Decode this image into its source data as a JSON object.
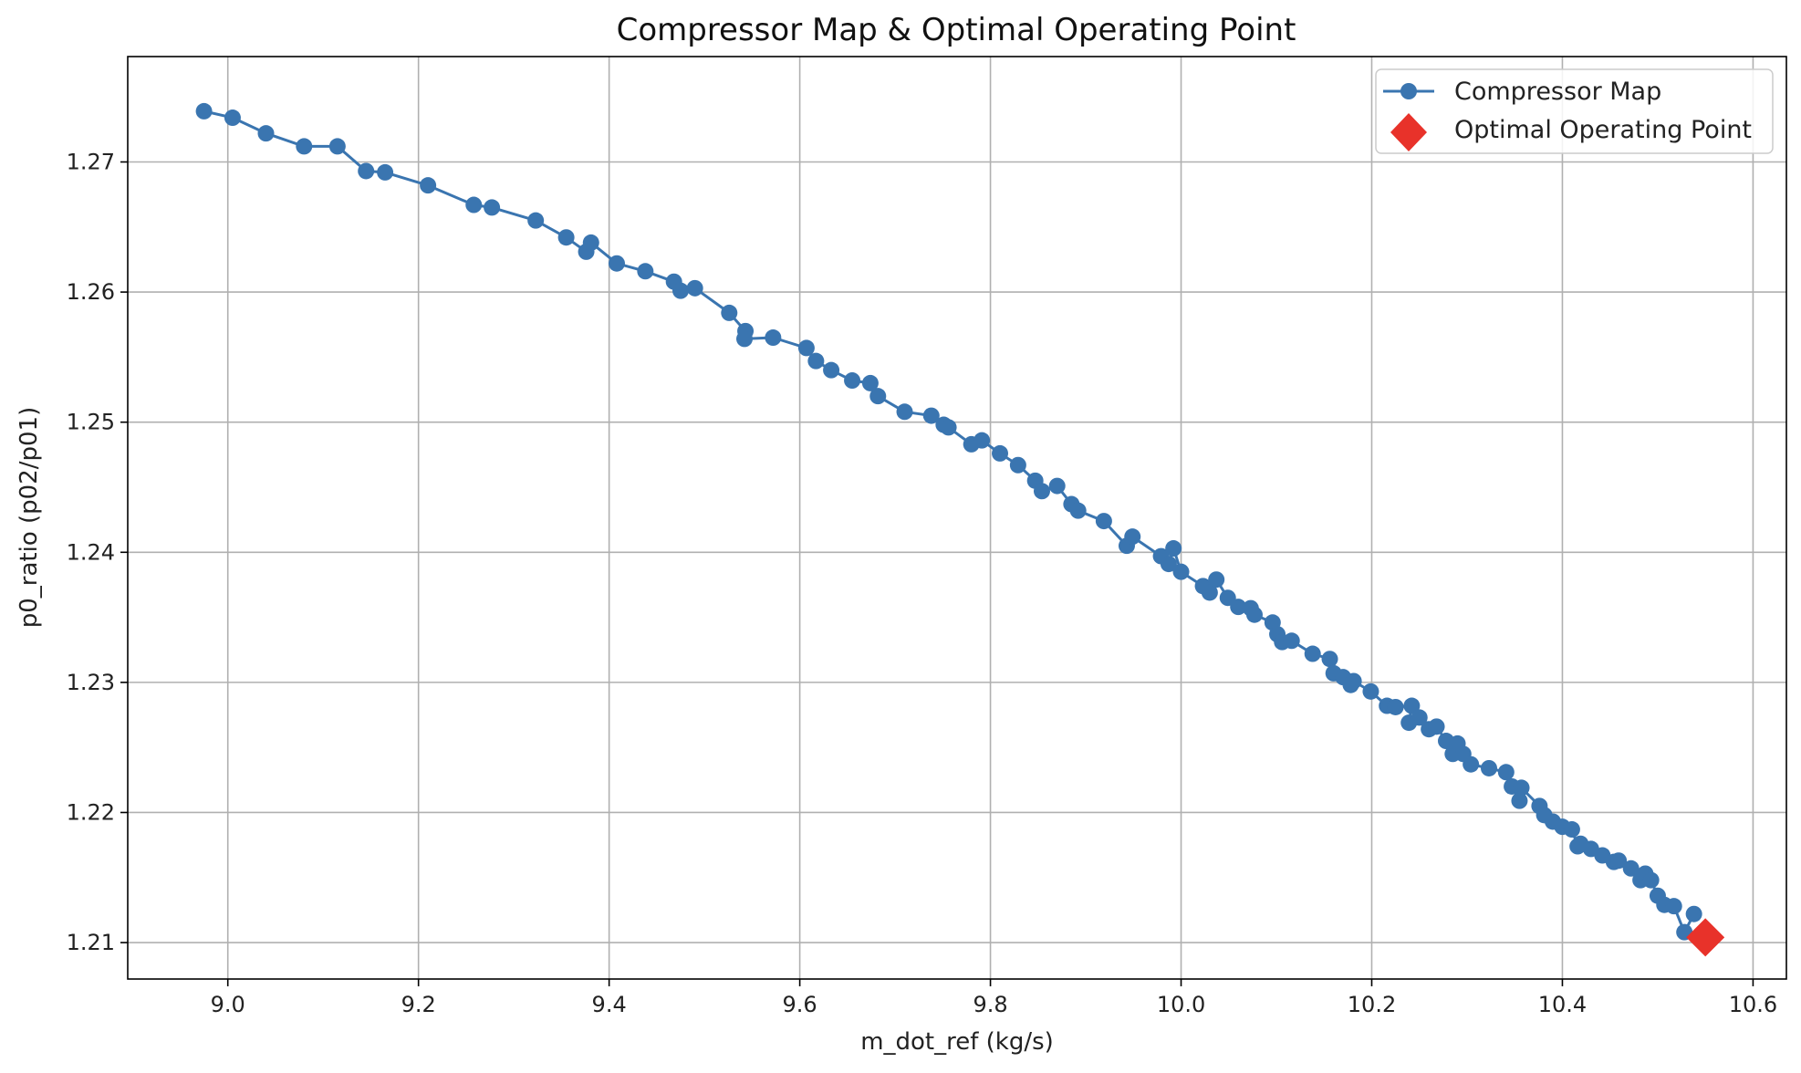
{
  "chart_data": {
    "type": "line",
    "title": "Compressor Map & Optimal Operating Point",
    "xlabel": "m_dot_ref (kg/s)",
    "ylabel": "p0_ratio (p02/p01)",
    "xlim": [
      8.895,
      10.635
    ],
    "ylim": [
      1.2072,
      1.2781
    ],
    "xticks": [
      9.0,
      9.2,
      9.4,
      9.6,
      9.8,
      10.0,
      10.2,
      10.4,
      10.6
    ],
    "xtick_labels": [
      "9.0",
      "9.2",
      "9.4",
      "9.6",
      "9.8",
      "10.0",
      "10.2",
      "10.4",
      "10.6"
    ],
    "yticks": [
      1.21,
      1.22,
      1.23,
      1.24,
      1.25,
      1.26,
      1.27
    ],
    "ytick_labels": [
      "1.21",
      "1.22",
      "1.23",
      "1.24",
      "1.25",
      "1.26",
      "1.27"
    ],
    "grid": true,
    "legend_position": "top-right",
    "series": [
      {
        "name": "Compressor Map",
        "color": "#3a75b0",
        "marker": "circle",
        "x": [
          8.975,
          9.005,
          9.04,
          9.08,
          9.115,
          9.145,
          9.165,
          9.21,
          9.258,
          9.277,
          9.323,
          9.355,
          9.376,
          9.381,
          9.408,
          9.438,
          9.468,
          9.475,
          9.49,
          9.526,
          9.543,
          9.542,
          9.572,
          9.607,
          9.617,
          9.633,
          9.655,
          9.674,
          9.682,
          9.71,
          9.738,
          9.751,
          9.756,
          9.78,
          9.791,
          9.81,
          9.829,
          9.847,
          9.854,
          9.87,
          9.885,
          9.892,
          9.919,
          9.943,
          9.949,
          9.979,
          9.987,
          9.992,
          10.0,
          10.023,
          10.03,
          10.037,
          10.049,
          10.06,
          10.073,
          10.077,
          10.096,
          10.101,
          10.106,
          10.116,
          10.138,
          10.156,
          10.16,
          10.17,
          10.178,
          10.181,
          10.199,
          10.216,
          10.225,
          10.242,
          10.239,
          10.25,
          10.26,
          10.268,
          10.278,
          10.285,
          10.29,
          10.296,
          10.304,
          10.323,
          10.341,
          10.347,
          10.355,
          10.357,
          10.376,
          10.381,
          10.39,
          10.4,
          10.41,
          10.416,
          10.419,
          10.43,
          10.442,
          10.454,
          10.459,
          10.472,
          10.482,
          10.487,
          10.493,
          10.5,
          10.507,
          10.517,
          10.528,
          10.538
        ],
        "y": [
          1.2739,
          1.2734,
          1.2722,
          1.2712,
          1.2712,
          1.2693,
          1.2692,
          1.2682,
          1.2667,
          1.2665,
          1.2655,
          1.2642,
          1.2631,
          1.2638,
          1.2622,
          1.2616,
          1.2608,
          1.2601,
          1.2603,
          1.2584,
          1.257,
          1.2564,
          1.2565,
          1.2557,
          1.2547,
          1.254,
          1.2532,
          1.253,
          1.252,
          1.2508,
          1.2505,
          1.2498,
          1.2496,
          1.2483,
          1.2486,
          1.2476,
          1.2467,
          1.2455,
          1.2447,
          1.2451,
          1.2437,
          1.2432,
          1.2424,
          1.2405,
          1.2412,
          1.2397,
          1.2391,
          1.2403,
          1.2385,
          1.2374,
          1.2369,
          1.2379,
          1.2365,
          1.2358,
          1.2357,
          1.2352,
          1.2346,
          1.2337,
          1.2331,
          1.2332,
          1.2322,
          1.2318,
          1.2307,
          1.2304,
          1.2298,
          1.2301,
          1.2293,
          1.2282,
          1.2281,
          1.2282,
          1.2269,
          1.2273,
          1.2264,
          1.2266,
          1.2255,
          1.2245,
          1.2253,
          1.2245,
          1.2237,
          1.2234,
          1.2231,
          1.222,
          1.2209,
          1.2219,
          1.2205,
          1.2198,
          1.2193,
          1.2189,
          1.2187,
          1.2174,
          1.2176,
          1.2172,
          1.2167,
          1.2162,
          1.2163,
          1.2157,
          1.2148,
          1.2153,
          1.2148,
          1.2136,
          1.2129,
          1.2128,
          1.2108,
          1.2122
        ]
      },
      {
        "name": "Optimal Operating Point",
        "color": "#e8322a",
        "marker": "diamond",
        "x": [
          10.55
        ],
        "y": [
          1.2104
        ]
      }
    ]
  }
}
